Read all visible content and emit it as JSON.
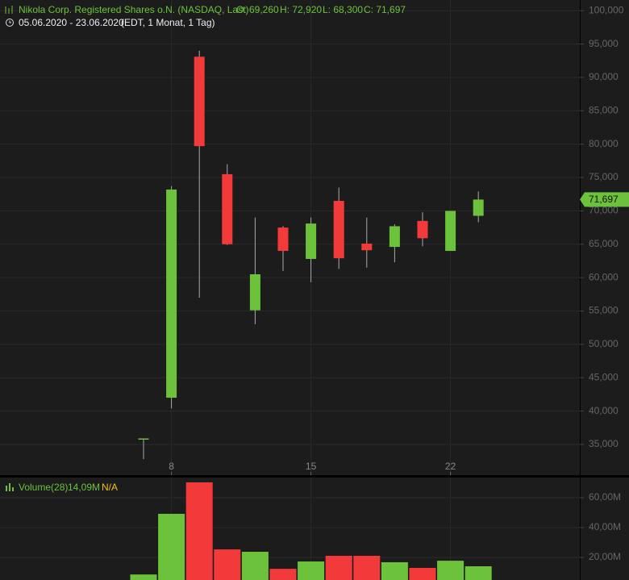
{
  "chart_data": [
    {
      "type": "candlestick",
      "title": "Nikola Corp. Registered Shares  o.N. (NASDAQ, Last)",
      "ohlc_labels": [
        "O: 69,260",
        "H: 72,920",
        "L: 68,300",
        "C: 71,697"
      ],
      "subtitle": "05.06.2020 - 23.06.2020",
      "subtitle_note": "(EDT, 1 Monat, 1 Tag)",
      "categories": [
        null,
        "8",
        null,
        null,
        null,
        null,
        "15",
        null,
        null,
        null,
        null,
        "22",
        null
      ],
      "open": [
        35.8,
        42.0,
        93.1,
        75.5,
        55.1,
        67.5,
        62.8,
        71.5,
        65.1,
        64.6,
        68.5,
        64.0,
        69.26
      ],
      "high": [
        35.9,
        73.7,
        94.0,
        77.0,
        69.0,
        67.7,
        69.0,
        73.5,
        69.0,
        68.0,
        69.8,
        70.0,
        72.92
      ],
      "low": [
        32.8,
        40.4,
        57.0,
        64.9,
        53.0,
        61.0,
        59.3,
        61.3,
        61.5,
        62.3,
        64.7,
        64.0,
        68.3
      ],
      "close": [
        35.9,
        73.2,
        79.7,
        65.0,
        60.5,
        64.0,
        68.1,
        62.9,
        64.1,
        67.7,
        65.9,
        70.0,
        71.697
      ],
      "up_color": "#6cc23a",
      "down_color": "#f23a3a",
      "last_value": 71.697,
      "last_label": "71,697",
      "ylim": [
        30.4,
        101.6
      ],
      "yticks": [
        {
          "value": 100,
          "label": "100,000"
        },
        {
          "value": 95,
          "label": "95,000"
        },
        {
          "value": 90,
          "label": "90,000"
        },
        {
          "value": 85,
          "label": "85,000"
        },
        {
          "value": 80,
          "label": "80,000"
        },
        {
          "value": 75,
          "label": "75,000"
        },
        {
          "value": 70,
          "label": "70,000"
        },
        {
          "value": 65,
          "label": "65,000"
        },
        {
          "value": 60,
          "label": "60,000"
        },
        {
          "value": 55,
          "label": "55,000"
        },
        {
          "value": 50,
          "label": "50,000"
        },
        {
          "value": 45,
          "label": "45,000"
        },
        {
          "value": 40,
          "label": "40,000"
        },
        {
          "value": 35,
          "label": "35,000"
        }
      ],
      "grid": true
    },
    {
      "type": "bar",
      "title": "Volume(28)",
      "last_label": "14,09M",
      "note": "N/A",
      "values": [
        8.6,
        49.2,
        70.3,
        25.4,
        23.8,
        12.4,
        17.3,
        21.1,
        21.1,
        16.8,
        13.0,
        17.8,
        14.09
      ],
      "ylim": [
        4.9,
        73.5
      ],
      "yticks": [
        {
          "value": 60,
          "label": "60,00M"
        },
        {
          "value": 40,
          "label": "40,00M"
        },
        {
          "value": 20,
          "label": "20,00M"
        }
      ],
      "grid": true
    }
  ]
}
